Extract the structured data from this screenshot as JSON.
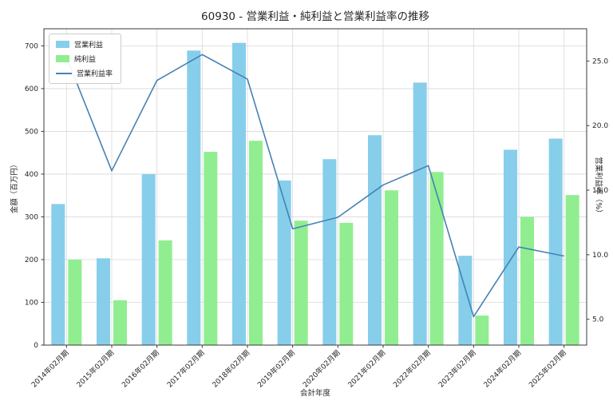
{
  "chart_data": {
    "type": "bar",
    "subtype": "grouped-bars-with-line-overlay",
    "title": "60930 - 営業利益・純利益と営業利益率の推移",
    "xlabel": "会計年度",
    "categories": [
      "2014年02月期",
      "2015年02月期",
      "2016年02月期",
      "2017年02月期",
      "2018年02月期",
      "2019年02月期",
      "2020年02月期",
      "2021年02月期",
      "2022年02月期",
      "2023年02月期",
      "2024年02月期",
      "2025年02月期"
    ],
    "series": [
      {
        "name": "営業利益",
        "type": "bar",
        "axis": "left",
        "color": "#87CEEB",
        "values": [
          330,
          203,
          400,
          689,
          707,
          385,
          435,
          491,
          614,
          209,
          457,
          483
        ]
      },
      {
        "name": "純利益",
        "type": "bar",
        "axis": "left",
        "color": "#90EE90",
        "values": [
          200,
          105,
          245,
          452,
          478,
          291,
          286,
          362,
          405,
          69,
          300,
          351
        ]
      },
      {
        "name": "営業利益率",
        "type": "line",
        "axis": "right",
        "color": "#4682B4",
        "values": [
          25.3,
          16.5,
          23.5,
          25.5,
          23.6,
          12.0,
          12.9,
          15.4,
          16.9,
          5.2,
          10.6,
          9.9
        ]
      }
    ],
    "left_axis": {
      "label": "金額（百万円）",
      "min": 0,
      "max": 740,
      "ticks": [
        0,
        100,
        200,
        300,
        400,
        500,
        600,
        700
      ]
    },
    "right_axis": {
      "label": "営業利益率（%）",
      "min": 3.0,
      "max": 27.5,
      "ticks": [
        "5.0",
        "10.0",
        "15.0",
        "20.0",
        "25.0"
      ],
      "tick_values": [
        5,
        10,
        15,
        20,
        25
      ]
    },
    "grid": true,
    "legend_position": "upper left"
  },
  "colors": {
    "background": "#ffffff",
    "grid": "#d9d9d9",
    "spine": "#3a3a3a",
    "text": "#262626"
  }
}
